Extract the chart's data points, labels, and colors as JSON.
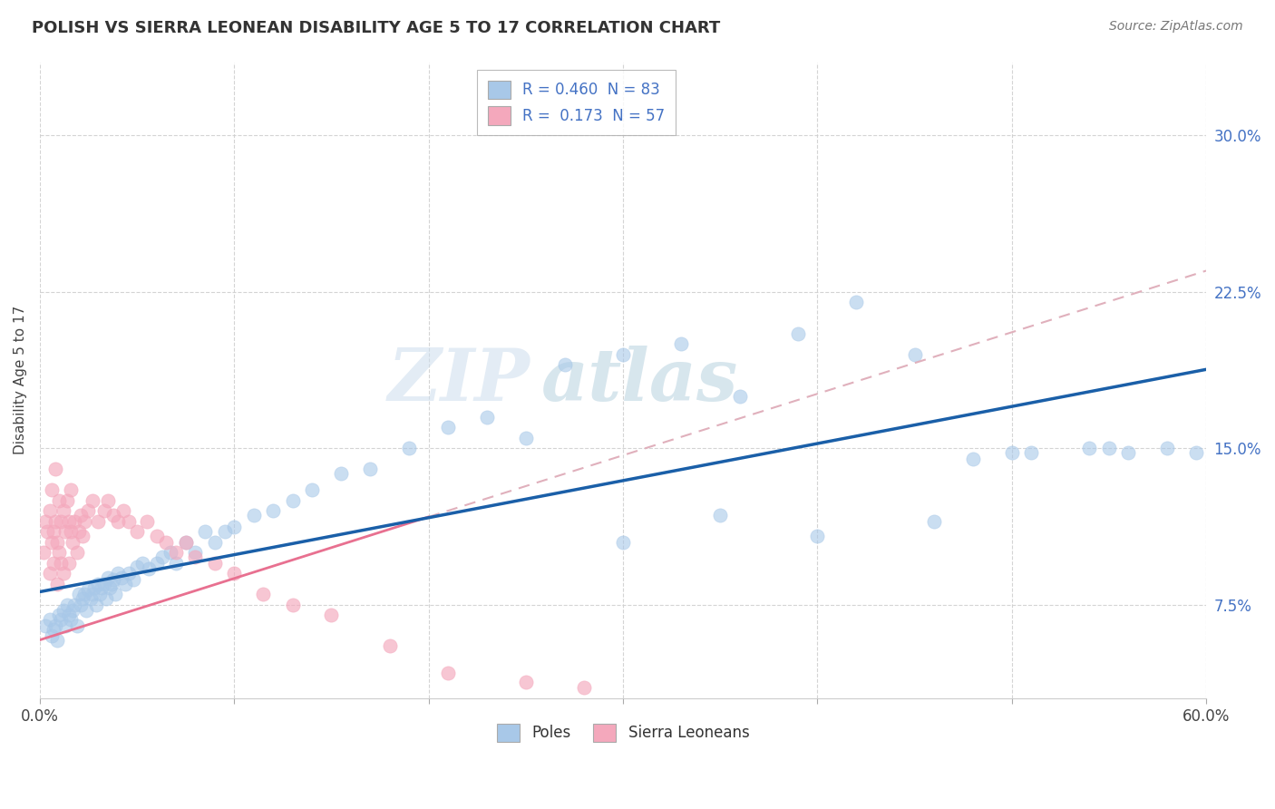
{
  "title": "POLISH VS SIERRA LEONEAN DISABILITY AGE 5 TO 17 CORRELATION CHART",
  "source": "Source: ZipAtlas.com",
  "ylabel": "Disability Age 5 to 17",
  "xlim": [
    0.0,
    0.6
  ],
  "ylim": [
    0.03,
    0.335
  ],
  "xticks": [
    0.0,
    0.1,
    0.2,
    0.3,
    0.4,
    0.5,
    0.6
  ],
  "xticklabels": [
    "0.0%",
    "",
    "",
    "",
    "",
    "",
    "60.0%"
  ],
  "yticks": [
    0.075,
    0.15,
    0.225,
    0.3
  ],
  "yticklabels": [
    "7.5%",
    "15.0%",
    "22.5%",
    "30.0%"
  ],
  "poles_R": 0.46,
  "poles_N": 83,
  "sierra_R": 0.173,
  "sierra_N": 57,
  "poles_color": "#a8c8e8",
  "sierra_color": "#f4a8bc",
  "trend_poles_color": "#1a5fa8",
  "trend_sierra_color": "#e87090",
  "trend_sierra_ext_color": "#e0b0bc",
  "poles_x": [
    0.003,
    0.005,
    0.006,
    0.007,
    0.008,
    0.009,
    0.01,
    0.011,
    0.012,
    0.013,
    0.014,
    0.015,
    0.016,
    0.017,
    0.018,
    0.019,
    0.02,
    0.021,
    0.022,
    0.023,
    0.024,
    0.025,
    0.026,
    0.027,
    0.028,
    0.029,
    0.03,
    0.031,
    0.032,
    0.033,
    0.034,
    0.035,
    0.036,
    0.037,
    0.038,
    0.039,
    0.04,
    0.042,
    0.044,
    0.046,
    0.048,
    0.05,
    0.053,
    0.056,
    0.06,
    0.063,
    0.067,
    0.07,
    0.075,
    0.08,
    0.085,
    0.09,
    0.095,
    0.1,
    0.11,
    0.12,
    0.13,
    0.14,
    0.155,
    0.17,
    0.19,
    0.21,
    0.23,
    0.25,
    0.27,
    0.3,
    0.33,
    0.36,
    0.39,
    0.42,
    0.45,
    0.48,
    0.51,
    0.54,
    0.56,
    0.58,
    0.595,
    0.3,
    0.35,
    0.4,
    0.46,
    0.5,
    0.55
  ],
  "poles_y": [
    0.065,
    0.068,
    0.06,
    0.063,
    0.065,
    0.058,
    0.07,
    0.068,
    0.072,
    0.065,
    0.075,
    0.07,
    0.068,
    0.072,
    0.075,
    0.065,
    0.08,
    0.075,
    0.078,
    0.08,
    0.072,
    0.082,
    0.078,
    0.08,
    0.083,
    0.075,
    0.085,
    0.08,
    0.083,
    0.085,
    0.078,
    0.088,
    0.083,
    0.085,
    0.087,
    0.08,
    0.09,
    0.088,
    0.085,
    0.09,
    0.087,
    0.093,
    0.095,
    0.092,
    0.095,
    0.098,
    0.1,
    0.095,
    0.105,
    0.1,
    0.11,
    0.105,
    0.11,
    0.112,
    0.118,
    0.12,
    0.125,
    0.13,
    0.138,
    0.14,
    0.15,
    0.16,
    0.165,
    0.155,
    0.19,
    0.195,
    0.2,
    0.175,
    0.205,
    0.22,
    0.195,
    0.145,
    0.148,
    0.15,
    0.148,
    0.15,
    0.148,
    0.105,
    0.118,
    0.108,
    0.115,
    0.148,
    0.15
  ],
  "sierra_x": [
    0.002,
    0.003,
    0.004,
    0.005,
    0.005,
    0.006,
    0.006,
    0.007,
    0.007,
    0.008,
    0.008,
    0.009,
    0.009,
    0.01,
    0.01,
    0.011,
    0.011,
    0.012,
    0.012,
    0.013,
    0.014,
    0.015,
    0.015,
    0.016,
    0.016,
    0.017,
    0.018,
    0.019,
    0.02,
    0.021,
    0.022,
    0.023,
    0.025,
    0.027,
    0.03,
    0.033,
    0.035,
    0.038,
    0.04,
    0.043,
    0.046,
    0.05,
    0.055,
    0.06,
    0.065,
    0.07,
    0.075,
    0.08,
    0.09,
    0.1,
    0.115,
    0.13,
    0.15,
    0.18,
    0.21,
    0.25,
    0.28
  ],
  "sierra_y": [
    0.1,
    0.115,
    0.11,
    0.12,
    0.09,
    0.105,
    0.13,
    0.11,
    0.095,
    0.115,
    0.14,
    0.105,
    0.085,
    0.125,
    0.1,
    0.115,
    0.095,
    0.12,
    0.09,
    0.11,
    0.125,
    0.115,
    0.095,
    0.11,
    0.13,
    0.105,
    0.115,
    0.1,
    0.11,
    0.118,
    0.108,
    0.115,
    0.12,
    0.125,
    0.115,
    0.12,
    0.125,
    0.118,
    0.115,
    0.12,
    0.115,
    0.11,
    0.115,
    0.108,
    0.105,
    0.1,
    0.105,
    0.098,
    0.095,
    0.09,
    0.08,
    0.075,
    0.07,
    0.055,
    0.042,
    0.038,
    0.035
  ],
  "watermark_zip": "ZIP",
  "watermark_atlas": "atlas",
  "background_color": "#ffffff",
  "grid_color": "#d0d0d0"
}
